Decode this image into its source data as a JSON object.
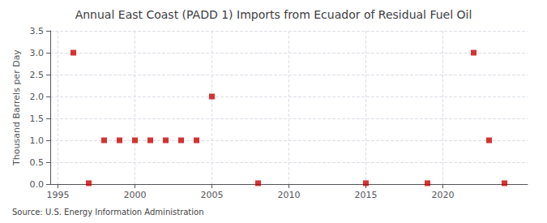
{
  "chart_data": {
    "type": "scatter",
    "title": "Annual East Coast (PADD 1) Imports from Ecuador of Residual Fuel Oil",
    "ylabel": "Thousand Barrels per Day",
    "source": "Source: U.S. Energy Information Administration",
    "x": [
      1996,
      1997,
      1998,
      1999,
      2000,
      2001,
      2002,
      2003,
      2004,
      2005,
      2008,
      2015,
      2019,
      2022,
      2023,
      2024
    ],
    "values": [
      3.0,
      0.02,
      1.0,
      1.0,
      1.0,
      1.0,
      1.0,
      1.0,
      1.0,
      2.0,
      0.02,
      0.02,
      0.02,
      3.0,
      1.0,
      0.02
    ],
    "color": "#cc0000",
    "marker": "square",
    "xlim": [
      1994.5,
      2025.5
    ],
    "xticks": [
      1995,
      2000,
      2005,
      2010,
      2015,
      2020
    ],
    "ylim": [
      0.0,
      3.5
    ],
    "yticks": [
      {
        "value": 0.0,
        "label": "0.0"
      },
      0.5,
      {
        "value": 1.0,
        "label": "1.0"
      },
      1.5,
      {
        "value": 2.0,
        "label": "2.0"
      },
      2.5,
      {
        "value": 3.0,
        "label": "3.0"
      },
      3.5
    ],
    "grid": true
  }
}
